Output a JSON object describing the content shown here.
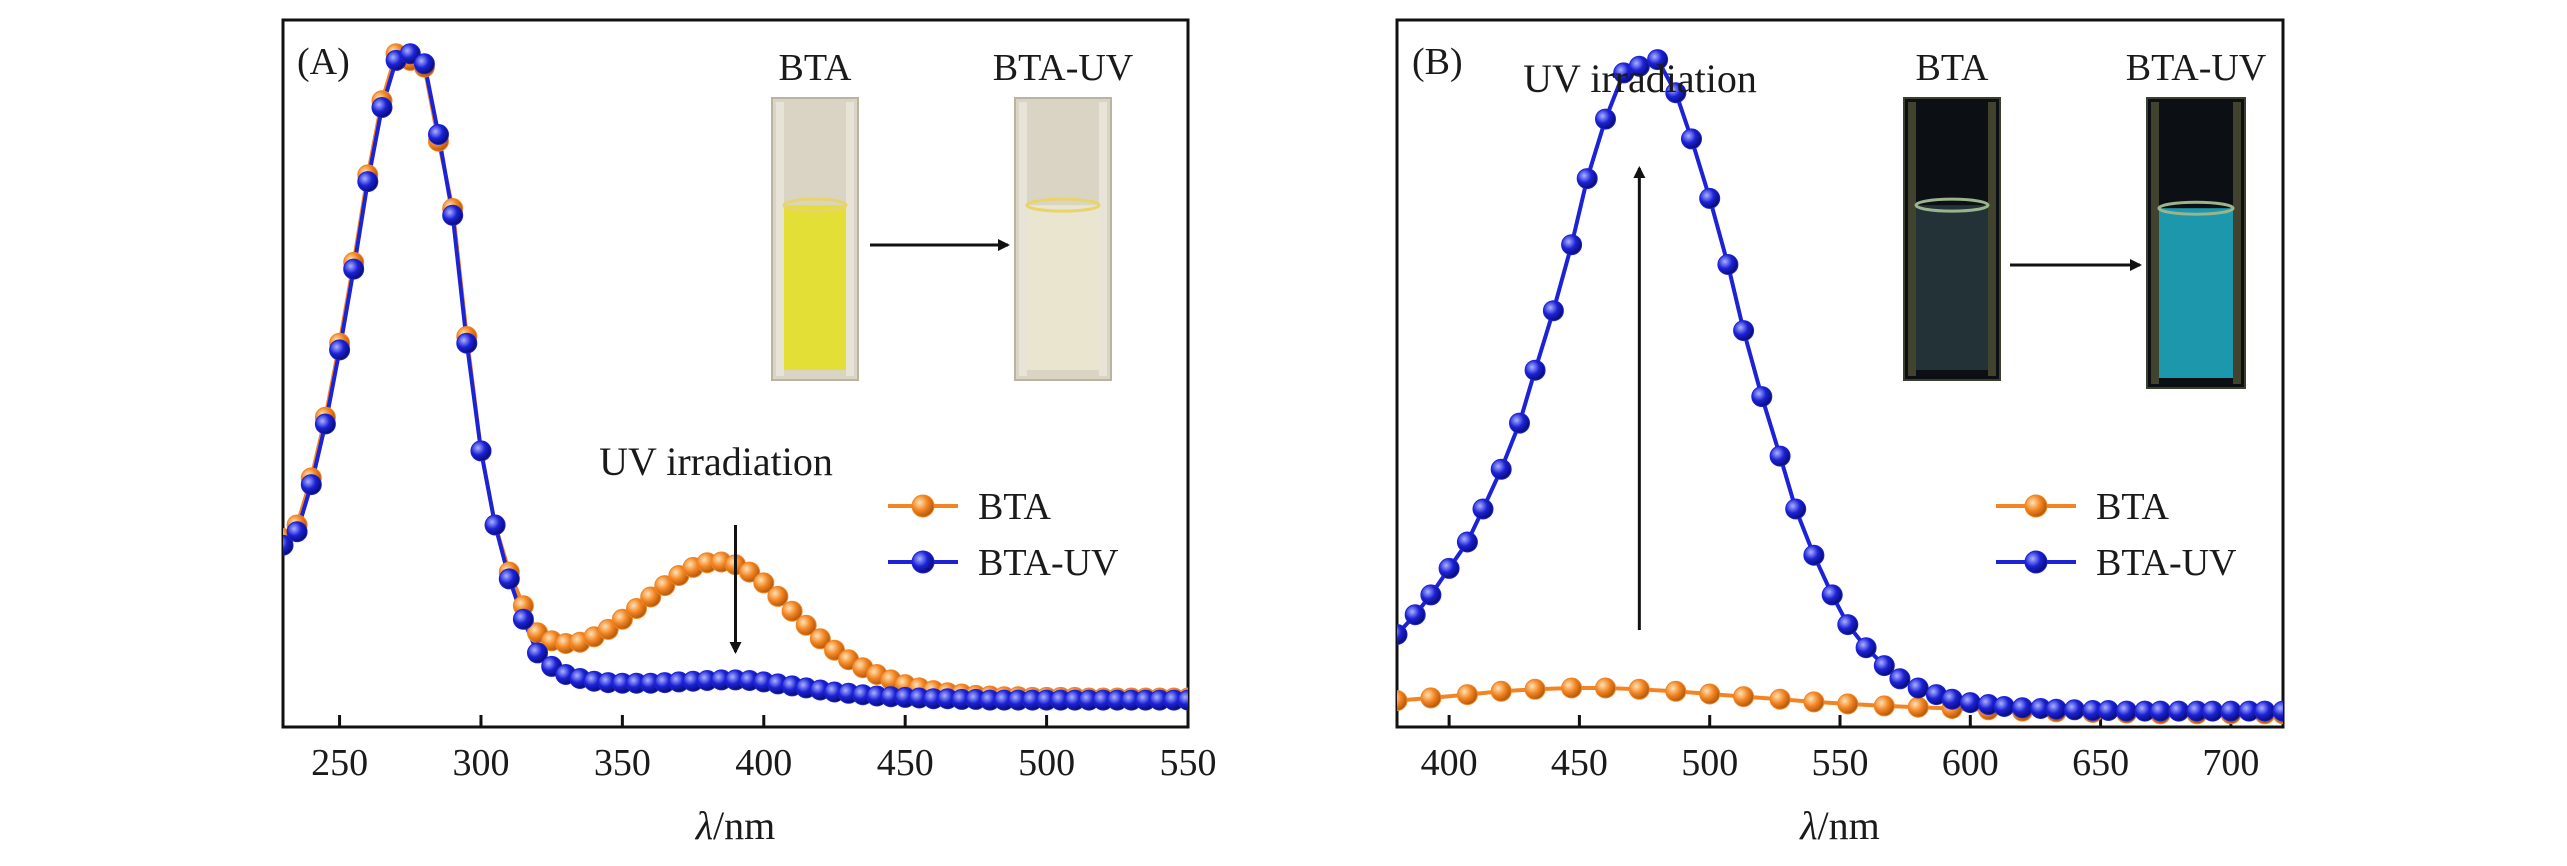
{
  "chart_data": [
    {
      "type": "line",
      "panel_label": "(A)",
      "xlabel_symbol": "λ",
      "xlabel_unit": "/nm",
      "ylabel": "",
      "xlim": [
        230,
        550
      ],
      "ylim": [
        0,
        1.05
      ],
      "x_ticks": [
        250,
        300,
        350,
        400,
        450,
        500,
        550
      ],
      "annotation": "UV irradiation",
      "arrow_x": 390,
      "arrow_direction": "down",
      "photos": [
        {
          "label": "BTA",
          "liquid_color": "#e4e02a"
        },
        {
          "label": "BTA-UV",
          "liquid_color": "#ece6cf"
        }
      ],
      "legend_position": "right-middle",
      "series": [
        {
          "name": "BTA",
          "color": "#f28522",
          "x": [
            230,
            235,
            240,
            245,
            250,
            255,
            260,
            265,
            270,
            275,
            280,
            285,
            290,
            295,
            300,
            305,
            310,
            315,
            320,
            325,
            330,
            335,
            340,
            345,
            350,
            355,
            360,
            365,
            370,
            375,
            380,
            385,
            390,
            395,
            400,
            405,
            410,
            415,
            420,
            425,
            430,
            435,
            440,
            445,
            450,
            455,
            460,
            465,
            470,
            475,
            480,
            485,
            490,
            495,
            500,
            505,
            510,
            515,
            520,
            525,
            530,
            535,
            540,
            545,
            550
          ],
          "y": [
            0.28,
            0.3,
            0.37,
            0.46,
            0.57,
            0.69,
            0.82,
            0.93,
            1.0,
            0.99,
            0.98,
            0.87,
            0.77,
            0.58,
            0.41,
            0.3,
            0.23,
            0.18,
            0.14,
            0.128,
            0.124,
            0.126,
            0.134,
            0.145,
            0.16,
            0.176,
            0.193,
            0.21,
            0.225,
            0.237,
            0.244,
            0.245,
            0.241,
            0.23,
            0.214,
            0.194,
            0.172,
            0.151,
            0.131,
            0.114,
            0.1,
            0.088,
            0.078,
            0.07,
            0.063,
            0.058,
            0.054,
            0.051,
            0.049,
            0.047,
            0.046,
            0.045,
            0.045,
            0.044,
            0.044,
            0.044,
            0.044,
            0.043,
            0.043,
            0.043,
            0.043,
            0.043,
            0.043,
            0.043,
            0.043
          ]
        },
        {
          "name": "BTA-UV",
          "color": "#1c22d6",
          "x": [
            230,
            235,
            240,
            245,
            250,
            255,
            260,
            265,
            270,
            275,
            280,
            285,
            290,
            295,
            300,
            305,
            310,
            315,
            320,
            325,
            330,
            335,
            340,
            345,
            350,
            355,
            360,
            365,
            370,
            375,
            380,
            385,
            390,
            395,
            400,
            405,
            410,
            415,
            420,
            425,
            430,
            435,
            440,
            445,
            450,
            455,
            460,
            465,
            470,
            475,
            480,
            485,
            490,
            495,
            500,
            505,
            510,
            515,
            520,
            525,
            530,
            535,
            540,
            545,
            550
          ],
          "y": [
            0.27,
            0.29,
            0.36,
            0.45,
            0.56,
            0.68,
            0.81,
            0.92,
            0.99,
            1.0,
            0.985,
            0.88,
            0.76,
            0.57,
            0.41,
            0.3,
            0.22,
            0.16,
            0.11,
            0.09,
            0.078,
            0.072,
            0.068,
            0.066,
            0.065,
            0.065,
            0.065,
            0.066,
            0.067,
            0.068,
            0.069,
            0.07,
            0.07,
            0.069,
            0.067,
            0.064,
            0.061,
            0.058,
            0.055,
            0.052,
            0.05,
            0.048,
            0.046,
            0.045,
            0.044,
            0.043,
            0.042,
            0.042,
            0.041,
            0.041,
            0.04,
            0.04,
            0.04,
            0.04,
            0.04,
            0.04,
            0.04,
            0.04,
            0.04,
            0.04,
            0.04,
            0.04,
            0.04,
            0.04,
            0.04
          ]
        }
      ]
    },
    {
      "type": "line",
      "panel_label": "(B)",
      "xlabel_symbol": "λ",
      "xlabel_unit": "/nm",
      "ylabel": "",
      "xlim": [
        380,
        720
      ],
      "ylim": [
        0,
        1.07
      ],
      "x_ticks": [
        400,
        450,
        500,
        550,
        600,
        650,
        700
      ],
      "annotation": "UV irradiation",
      "arrow_x": 473,
      "arrow_direction": "up",
      "photos": [
        {
          "label": "BTA",
          "liquid_color": "#26353a"
        },
        {
          "label": "BTA-UV",
          "liquid_color": "#1fa3b8"
        }
      ],
      "legend_position": "right-middle",
      "series": [
        {
          "name": "BTA",
          "color": "#f28522",
          "x": [
            380,
            393,
            407,
            420,
            433,
            447,
            460,
            473,
            487,
            500,
            513,
            527,
            540,
            553,
            567,
            580,
            593,
            607,
            620,
            633,
            647,
            660,
            673,
            687,
            700,
            713,
            720
          ],
          "y": [
            0.04,
            0.044,
            0.049,
            0.054,
            0.057,
            0.059,
            0.059,
            0.057,
            0.054,
            0.05,
            0.046,
            0.042,
            0.038,
            0.035,
            0.032,
            0.03,
            0.028,
            0.026,
            0.024,
            0.023,
            0.022,
            0.021,
            0.02,
            0.02,
            0.02,
            0.02,
            0.02
          ]
        },
        {
          "name": "BTA-UV",
          "color": "#1c22d6",
          "x": [
            380,
            387,
            393,
            400,
            407,
            413,
            420,
            427,
            433,
            440,
            447,
            453,
            460,
            467,
            473,
            480,
            487,
            493,
            500,
            507,
            513,
            520,
            527,
            533,
            540,
            547,
            553,
            560,
            567,
            573,
            580,
            587,
            593,
            600,
            607,
            613,
            620,
            627,
            633,
            640,
            647,
            653,
            660,
            667,
            673,
            680,
            687,
            693,
            700,
            707,
            713,
            720
          ],
          "y": [
            0.14,
            0.17,
            0.2,
            0.24,
            0.28,
            0.33,
            0.39,
            0.46,
            0.54,
            0.63,
            0.73,
            0.83,
            0.92,
            0.99,
            1.0,
            1.01,
            0.96,
            0.89,
            0.8,
            0.7,
            0.6,
            0.5,
            0.41,
            0.33,
            0.26,
            0.2,
            0.155,
            0.12,
            0.093,
            0.073,
            0.059,
            0.049,
            0.042,
            0.037,
            0.034,
            0.031,
            0.029,
            0.028,
            0.027,
            0.026,
            0.025,
            0.025,
            0.024,
            0.024,
            0.024,
            0.024,
            0.024,
            0.024,
            0.024,
            0.024,
            0.024,
            0.024
          ]
        }
      ]
    }
  ]
}
